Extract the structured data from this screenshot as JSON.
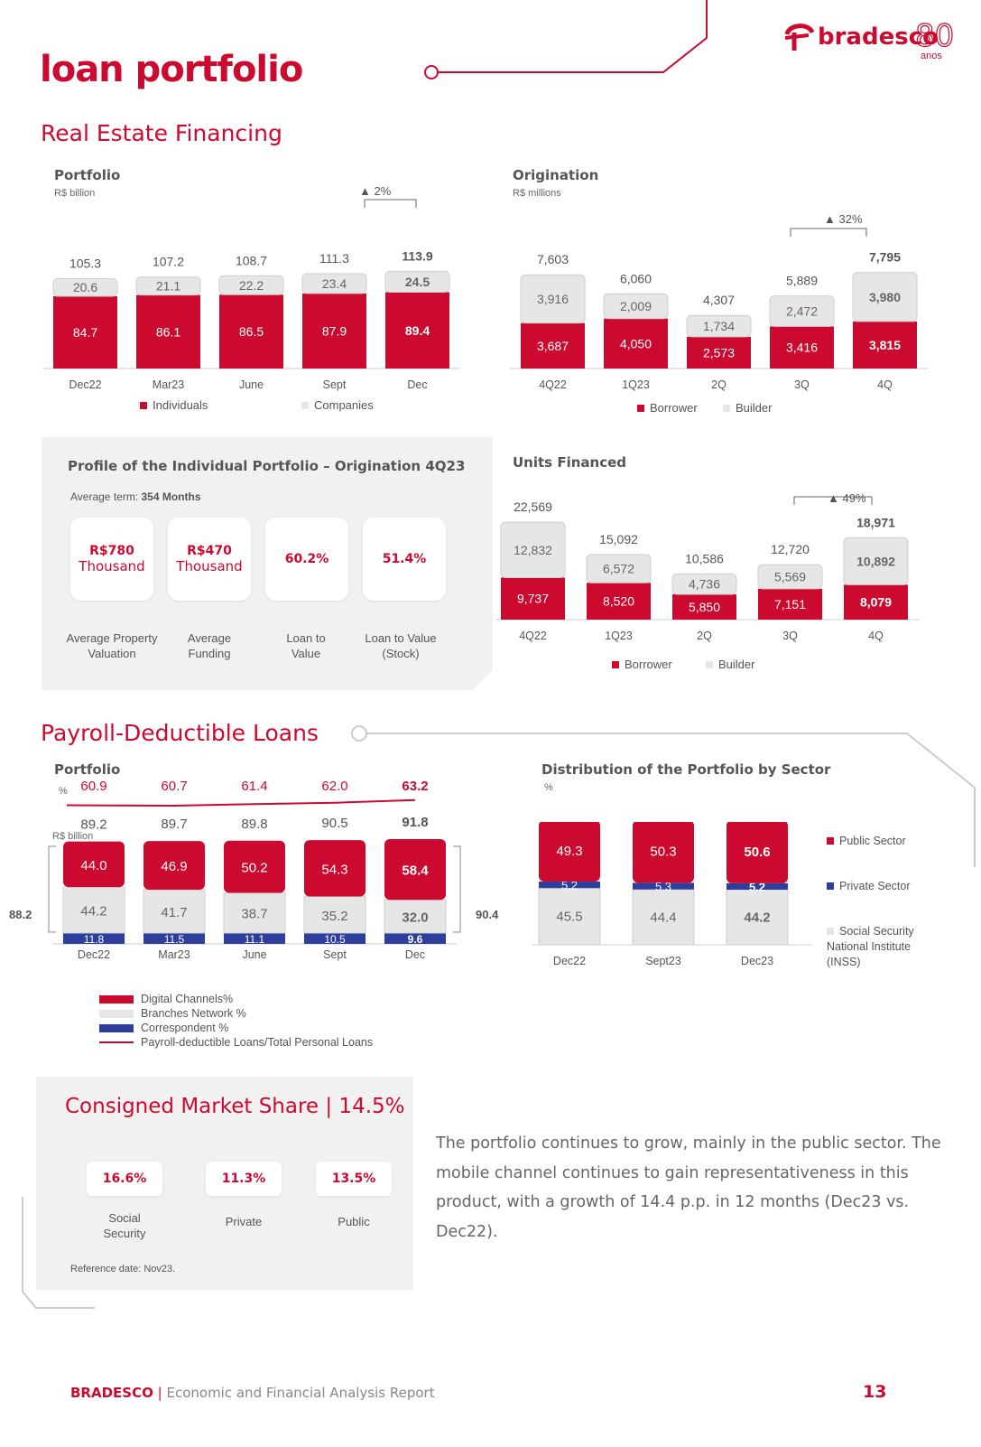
{
  "brand": {
    "logo": "bradesco",
    "anniversary": "80",
    "anos": "anos"
  },
  "page_title": "loan portfolio",
  "real_estate": {
    "title": "Real Estate Financing",
    "portfolio": {
      "title": "Portfolio",
      "unit": "R$ billion",
      "growth": "▲ 2%",
      "legend": [
        "Individuals",
        "Companies"
      ]
    },
    "origination": {
      "title": "Origination",
      "unit": "R$ millions",
      "growth": "▲ 32%",
      "legend": [
        "Borrower",
        "Builder"
      ]
    },
    "units": {
      "title": "Units Financed",
      "growth": "▲ 49%",
      "legend": [
        "Borrower",
        "Builder"
      ]
    },
    "profile": {
      "title": "Profile of the Individual Portfolio – Origination 4Q23",
      "avg_term_label": "Average term:",
      "avg_term_value": "354 Months",
      "cards": [
        {
          "value": "R$780",
          "sub": "Thousand",
          "label1": "Average Property",
          "label2": "Valuation"
        },
        {
          "value": "R$470",
          "sub": "Thousand",
          "label1": "Average",
          "label2": "Funding"
        },
        {
          "value": "60.2%",
          "sub": "",
          "label1": "Loan to",
          "label2": "Value"
        },
        {
          "value": "51.4%",
          "sub": "",
          "label1": "Loan to Value",
          "label2": "(Stock)"
        }
      ]
    }
  },
  "payroll": {
    "title": "Payroll-Deductible Loans",
    "portfolio": {
      "title": "Portfolio",
      "pct_unit": "%",
      "unit": "R$ billion",
      "bracket_left": "88.2",
      "bracket_right": "90.4",
      "legend": [
        "Digital Channels%",
        "Branches Network %",
        "Correspondent %",
        "Payroll-deductible Loans/Total Personal Loans"
      ]
    },
    "sector": {
      "title": "Distribution of the Portfolio by Sector",
      "unit": "%",
      "legend": [
        "Public Sector",
        "Private Sector",
        "Social Security National Institute (INSS)"
      ]
    }
  },
  "market_share": {
    "title": "Consigned Market Share | 14.5%",
    "items": [
      {
        "value": "16.6%",
        "label1": "Social",
        "label2": "Security"
      },
      {
        "value": "11.3%",
        "label1": "Private",
        "label2": ""
      },
      {
        "value": "13.5%",
        "label1": "Public",
        "label2": ""
      }
    ],
    "reference": "Reference date: Nov23."
  },
  "commentary": "The portfolio continues to grow, mainly in the public sector. The mobile channel continues to gain representativeness in this product, with a growth of 14.4 p.p. in 12 months (Dec23 vs. Dec22).",
  "footer": {
    "brand": "BRADESCO",
    "sep": "|",
    "report": "Economic and Financial Analysis Report",
    "page": "13"
  },
  "colors": {
    "red": "#cc092f",
    "grey": "#e6e6e6",
    "blue": "#2e3e9c",
    "panel": "#f1f1f1"
  },
  "chart_data": [
    {
      "id": "re_portfolio",
      "type": "bar",
      "title": "Portfolio",
      "ylabel": "R$ billion",
      "categories": [
        "Dec22",
        "Mar23",
        "June",
        "Sept",
        "Dec"
      ],
      "series": [
        {
          "name": "Individuals",
          "values": [
            84.7,
            86.1,
            86.5,
            87.9,
            89.4
          ]
        },
        {
          "name": "Companies",
          "values": [
            20.6,
            21.1,
            22.2,
            23.4,
            24.5
          ]
        }
      ],
      "totals": [
        105.3,
        107.2,
        108.7,
        111.3,
        113.9
      ]
    },
    {
      "id": "re_origination",
      "type": "bar",
      "title": "Origination",
      "ylabel": "R$ millions",
      "categories": [
        "4Q22",
        "1Q23",
        "2Q",
        "3Q",
        "4Q"
      ],
      "series": [
        {
          "name": "Borrower",
          "values": [
            3687,
            4050,
            2573,
            3416,
            3815
          ]
        },
        {
          "name": "Builder",
          "values": [
            3916,
            2009,
            1734,
            2472,
            3980
          ]
        }
      ],
      "totals": [
        7603,
        6060,
        4307,
        5889,
        7795
      ]
    },
    {
      "id": "re_units",
      "type": "bar",
      "title": "Units Financed",
      "categories": [
        "4Q22",
        "1Q23",
        "2Q",
        "3Q",
        "4Q"
      ],
      "series": [
        {
          "name": "Borrower",
          "values": [
            9737,
            8520,
            5850,
            7151,
            8079
          ]
        },
        {
          "name": "Builder",
          "values": [
            12832,
            6572,
            4736,
            5569,
            10892
          ]
        }
      ],
      "totals": [
        22569,
        15092,
        10586,
        12720,
        18971
      ]
    },
    {
      "id": "payroll_portfolio",
      "type": "bar",
      "title": "Portfolio",
      "categories": [
        "Dec22",
        "Mar23",
        "June",
        "Sept",
        "Dec"
      ],
      "series": [
        {
          "name": "Digital Channels%",
          "values": [
            44.0,
            46.9,
            50.2,
            54.3,
            58.4
          ]
        },
        {
          "name": "Branches Network %",
          "values": [
            44.2,
            41.7,
            38.7,
            35.2,
            32.0
          ]
        },
        {
          "name": "Correspondent %",
          "values": [
            11.8,
            11.5,
            11.1,
            10.5,
            9.6
          ]
        }
      ],
      "totals": [
        89.2,
        89.7,
        89.8,
        90.5,
        91.8
      ],
      "line": {
        "name": "Payroll-deductible Loans/Total Personal Loans",
        "values": [
          60.9,
          60.7,
          61.4,
          62.0,
          63.2
        ]
      }
    },
    {
      "id": "payroll_sector",
      "type": "bar",
      "title": "Distribution of the Portfolio by Sector",
      "ylabel": "%",
      "categories": [
        "Dec22",
        "Sept23",
        "Dec23"
      ],
      "series": [
        {
          "name": "Public Sector",
          "values": [
            49.3,
            50.3,
            50.6
          ]
        },
        {
          "name": "Private Sector",
          "values": [
            5.2,
            5.3,
            5.2
          ]
        },
        {
          "name": "Social Security National Institute (INSS)",
          "values": [
            45.5,
            44.4,
            44.2
          ]
        }
      ]
    }
  ]
}
